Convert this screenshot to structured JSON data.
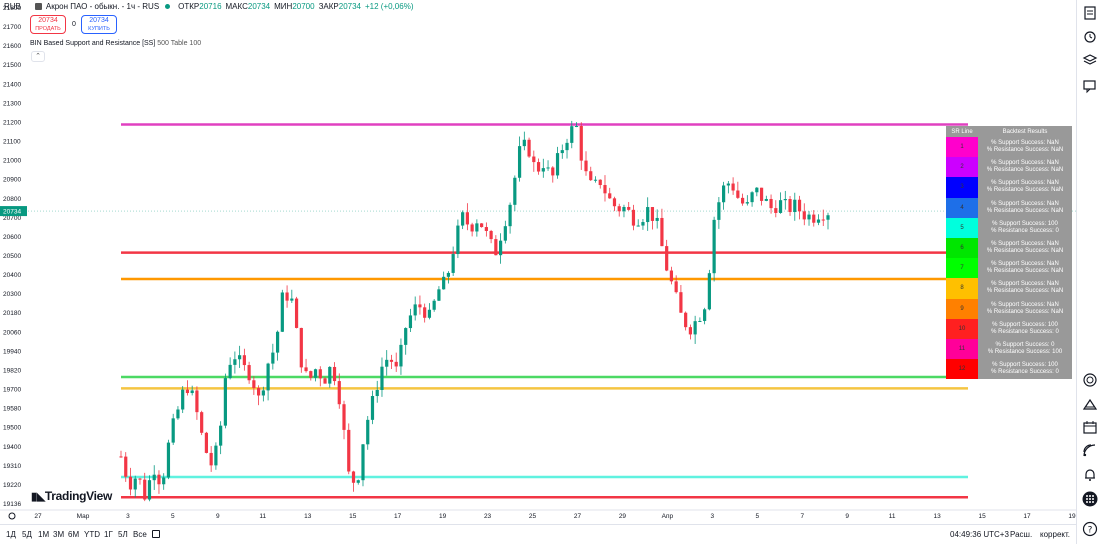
{
  "header": {
    "currency": "RUB",
    "title": "Акрон ПАО - обыкн. - 1ч - RUS",
    "open_label": "ОТКР",
    "open_value": "20716",
    "high_label": "МАКС",
    "high_value": "20734",
    "low_label": "МИН",
    "low_value": "20700",
    "close_label": "ЗАКР",
    "close_value": "20734",
    "change": "+12 (+0,06%)"
  },
  "trade": {
    "sell_price": "20734",
    "sell_label": "ПРОДАТЬ",
    "spread": "0",
    "buy_price": "20734",
    "buy_label": "КУПИТЬ"
  },
  "indicator": {
    "name": "BIN Based Support and Resistance [SS]",
    "params": "500 Table 100"
  },
  "price_axis": {
    "ticks": [
      "21800",
      "21700",
      "21600",
      "21500",
      "21400",
      "21300",
      "21200",
      "21100",
      "21000",
      "20900",
      "20800",
      "20700",
      "20600",
      "20500",
      "20400",
      "20300",
      "20180",
      "20060",
      "19940",
      "19820",
      "19700",
      "19580",
      "19500",
      "19400",
      "19310",
      "19220",
      "19136"
    ],
    "current_price": "20734"
  },
  "time_axis": {
    "ticks": [
      "27",
      "Мар",
      "3",
      "5",
      "9",
      "11",
      "13",
      "15",
      "17",
      "19",
      "23",
      "25",
      "27",
      "29",
      "Апр",
      "3",
      "5",
      "7",
      "9",
      "11",
      "13",
      "15",
      "17",
      "19"
    ]
  },
  "backtest_table": {
    "header_line": "SR Line",
    "header_results": "Backtest Results",
    "rows": [
      {
        "num": "1",
        "color": "#ff00cc",
        "support": "% Support Success: NaN",
        "resistance": "% Resistance Success: NaN"
      },
      {
        "num": "2",
        "color": "#cc00ff",
        "support": "% Support Success: NaN",
        "resistance": "% Resistance Success: NaN"
      },
      {
        "num": "3",
        "color": "#0000ff",
        "support": "% Support Success: NaN",
        "resistance": "% Resistance Success: NaN"
      },
      {
        "num": "4",
        "color": "#1e6fe8",
        "support": "% Support Success: NaN",
        "resistance": "% Resistance Success: NaN"
      },
      {
        "num": "5",
        "color": "#00ffdd",
        "support": "% Support Success: 100",
        "resistance": "% Resistance Success: 0"
      },
      {
        "num": "6",
        "color": "#00e600",
        "support": "% Support Success: NaN",
        "resistance": "% Resistance Success: NaN"
      },
      {
        "num": "7",
        "color": "#00ff00",
        "support": "% Support Success: NaN",
        "resistance": "% Resistance Success: NaN"
      },
      {
        "num": "8",
        "color": "#ffc000",
        "support": "% Support Success: NaN",
        "resistance": "% Resistance Success: NaN"
      },
      {
        "num": "9",
        "color": "#ff8000",
        "support": "% Support Success: NaN",
        "resistance": "% Resistance Success: NaN"
      },
      {
        "num": "10",
        "color": "#ff2020",
        "support": "% Support Success: 100",
        "resistance": "% Resistance Success: 0"
      },
      {
        "num": "11",
        "color": "#ff0099",
        "support": "% Support Success: 0",
        "resistance": "% Resistance Success: 100"
      },
      {
        "num": "12",
        "color": "#ff0000",
        "support": "% Support Success: 100",
        "resistance": "% Resistance Success: 0"
      }
    ]
  },
  "chart_data": {
    "type": "candlestick",
    "y_range": [
      19136,
      21800
    ],
    "current_price": 20734,
    "sr_lines": [
      {
        "price": 21205,
        "color": "#e040c0"
      },
      {
        "price": 20508,
        "color": "#f23645"
      },
      {
        "price": 20365,
        "color": "#ff9800"
      },
      {
        "price": 19832,
        "color": "#4cd964"
      },
      {
        "price": 19770,
        "color": "#f5c542"
      },
      {
        "price": 19288,
        "color": "#5ff2e0"
      },
      {
        "price": 19178,
        "color": "#f23645"
      }
    ],
    "price_path": [
      19400,
      19250,
      19300,
      19180,
      19350,
      19250,
      19500,
      19650,
      19800,
      19700,
      19500,
      19350,
      19450,
      19900,
      19950,
      19880,
      19850,
      19700,
      19900,
      20000,
      20300,
      20250,
      19950,
      19800,
      19880,
      19820,
      19900,
      19700,
      19300,
      19250,
      19550,
      19700,
      19880,
      19950,
      19850,
      20100,
      20200,
      20220,
      20150,
      20300,
      20350,
      20550,
      20700,
      20650,
      20700,
      20600,
      20500,
      20650,
      20800,
      21050,
      21100,
      20950,
      21000,
      20900,
      21050,
      21150,
      21200,
      20950,
      20850,
      20900,
      20800,
      20750,
      20750,
      20700,
      20700,
      20750,
      20650,
      20450,
      20300,
      20150,
      20100,
      20150,
      20250,
      20700,
      20850,
      20900,
      20800,
      20750,
      20850,
      20800,
      20750,
      20780,
      20750,
      20760,
      20720,
      20700,
      20730,
      20734
    ],
    "candle_colors": {
      "up": "#089981",
      "down": "#f23645"
    }
  },
  "bottombar": {
    "timeframes": [
      "1Д",
      "5Д",
      "1М",
      "3М",
      "6М",
      "YTD",
      "1Г",
      "5Л",
      "Все"
    ],
    "clock": "04:49:36 UTC+3",
    "ext_label": "Расш.",
    "adj_label": "коррект."
  },
  "logo": {
    "text": "TradingView"
  },
  "sidebar": {
    "icons": [
      "watchlist-icon",
      "alert-clock-icon",
      "layers-icon",
      "chat-icon",
      "target-icon",
      "ideas-icon",
      "calendar-icon",
      "signal-icon",
      "notifications-icon",
      "apps-grid-icon",
      "help-icon"
    ]
  }
}
